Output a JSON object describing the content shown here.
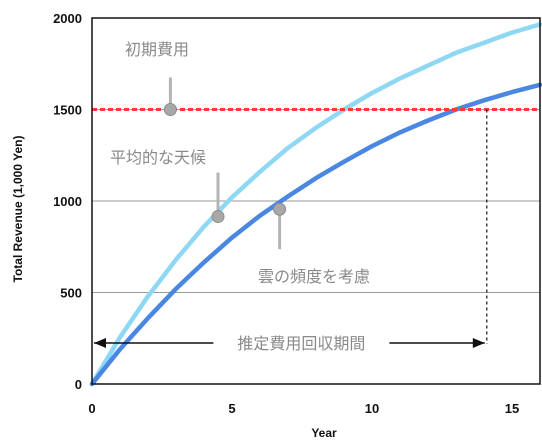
{
  "chart_data": {
    "type": "line",
    "xlabel": "Year",
    "ylabel": "Total Revenue (1,000 Yen)",
    "xlim": [
      0,
      16
    ],
    "ylim": [
      0,
      2000
    ],
    "x_ticks": [
      "0",
      "5",
      "10",
      "15"
    ],
    "y_ticks": [
      "0",
      "500",
      "1000",
      "1500",
      "2000"
    ],
    "grid": "horizontal",
    "reference_line": {
      "y": 1500,
      "color": "#ff3b30",
      "style": "dashed"
    },
    "series": [
      {
        "color": "#8fd8f4",
        "x": [
          0,
          1,
          2,
          3,
          4,
          5,
          6,
          7,
          8,
          9,
          10,
          11,
          12,
          13,
          14,
          15,
          16
        ],
        "values": [
          0,
          255,
          480,
          680,
          860,
          1020,
          1160,
          1290,
          1400,
          1500,
          1590,
          1670,
          1740,
          1810,
          1865,
          1920,
          1965
        ]
      },
      {
        "color": "#4a87e3",
        "x": [
          0,
          1,
          2,
          3,
          4,
          5,
          6,
          7,
          8,
          9,
          10,
          11,
          12,
          13,
          14,
          15,
          16
        ],
        "values": [
          0,
          190,
          360,
          520,
          665,
          800,
          920,
          1025,
          1125,
          1215,
          1300,
          1375,
          1440,
          1500,
          1550,
          1595,
          1635
        ]
      }
    ],
    "annotations": {
      "initial_cost": "初期費用",
      "average_weather": "平均的な天候",
      "cloudy_frequency": "雲の頻度を考慮",
      "payback_period": "推定費用回収期間"
    },
    "markers": [
      {
        "x": 2.8,
        "y": 1500,
        "label_key": "initial_cost"
      },
      {
        "x": 4.5,
        "y": 915,
        "label_key": "average_weather"
      },
      {
        "x": 6.7,
        "y": 955,
        "label_key": "cloudy_frequency"
      }
    ],
    "payback_year": 14.1
  }
}
